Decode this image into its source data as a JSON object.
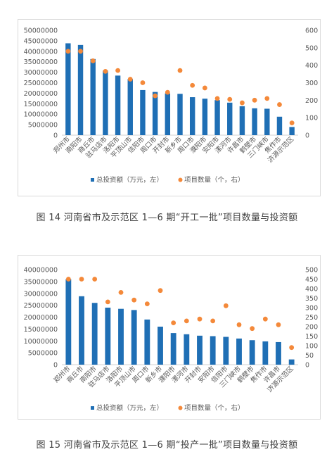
{
  "captions": {
    "fig14": "图 14  河南省市及示范区 1—6 期“开工一批”项目数量与投资额",
    "fig15": "图 15  河南省市及示范区 1—6 期“投产一批”项目数量与投资额"
  },
  "chart_data": [
    {
      "type": "bar",
      "title": "",
      "categories": [
        "郑州市",
        "南阳市",
        "商丘市",
        "驻马店市",
        "洛阳市",
        "平顶山市",
        "信阳市",
        "周口市",
        "开封市",
        "新乡市",
        "周口市",
        "濮阳市",
        "安阳市",
        "漯河市",
        "许昌市",
        "鹤壁市",
        "三门峡市",
        "焦作市",
        "济源示范区"
      ],
      "series": [
        {
          "name": "总投资额（万元，左）",
          "type": "bar",
          "axis": "left",
          "color": "#1f6fb5",
          "values": [
            43800000,
            43000000,
            36300000,
            30800000,
            28400000,
            26800000,
            21500000,
            20600000,
            19900000,
            19700000,
            18100000,
            17400000,
            16700000,
            15500000,
            13800000,
            12800000,
            12600000,
            8800000,
            3900000
          ]
        },
        {
          "name": "项目数量（个，右）",
          "type": "scatter",
          "axis": "right",
          "color": "#f4893a",
          "values": [
            480,
            480,
            425,
            365,
            370,
            320,
            300,
            225,
            245,
            370,
            285,
            270,
            210,
            205,
            185,
            200,
            210,
            175,
            70
          ]
        }
      ],
      "y_left": {
        "min": 0,
        "max": 50000000,
        "ticks": [
          "0",
          "5000000",
          "10000000",
          "15000000",
          "20000000",
          "25000000",
          "30000000",
          "35000000",
          "40000000",
          "45000000",
          "50000000"
        ]
      },
      "y_right": {
        "min": 0,
        "max": 600,
        "ticks": [
          "0",
          "100",
          "200",
          "300",
          "400",
          "500",
          "600"
        ]
      },
      "legend_position": "bottom",
      "grid": false
    },
    {
      "type": "bar",
      "title": "",
      "categories": [
        "郑州市",
        "商丘市",
        "南阳市",
        "驻马店市",
        "洛阳市",
        "平顶山市",
        "周口市",
        "新乡市",
        "濮阳市",
        "漯河市",
        "开封市",
        "安阳市",
        "信阳市",
        "三门峡市",
        "鹤壁市",
        "焦作市",
        "许昌市",
        "济源示范区"
      ],
      "series": [
        {
          "name": "总投资额（万元，左）",
          "type": "bar",
          "axis": "left",
          "color": "#1f6fb5",
          "values": [
            36000000,
            28800000,
            26000000,
            24000000,
            23500000,
            23000000,
            19000000,
            16000000,
            13300000,
            12800000,
            12200000,
            12000000,
            11700000,
            11000000,
            10300000,
            9800000,
            9500000,
            2200000
          ]
        },
        {
          "name": "项目数量（个，右）",
          "type": "scatter",
          "axis": "right",
          "color": "#f4893a",
          "values": [
            450,
            450,
            450,
            330,
            380,
            340,
            320,
            390,
            220,
            230,
            240,
            230,
            310,
            210,
            190,
            240,
            210,
            90
          ]
        }
      ],
      "y_left": {
        "min": 0,
        "max": 40000000,
        "ticks": [
          "0",
          "5000000",
          "10000000",
          "15000000",
          "20000000",
          "25000000",
          "30000000",
          "35000000",
          "40000000"
        ]
      },
      "y_right": {
        "min": 0,
        "max": 500,
        "ticks": [
          "0",
          "50",
          "100",
          "150",
          "200",
          "250",
          "300",
          "350",
          "400",
          "450",
          "500"
        ]
      },
      "legend_position": "bottom",
      "grid": false
    }
  ]
}
